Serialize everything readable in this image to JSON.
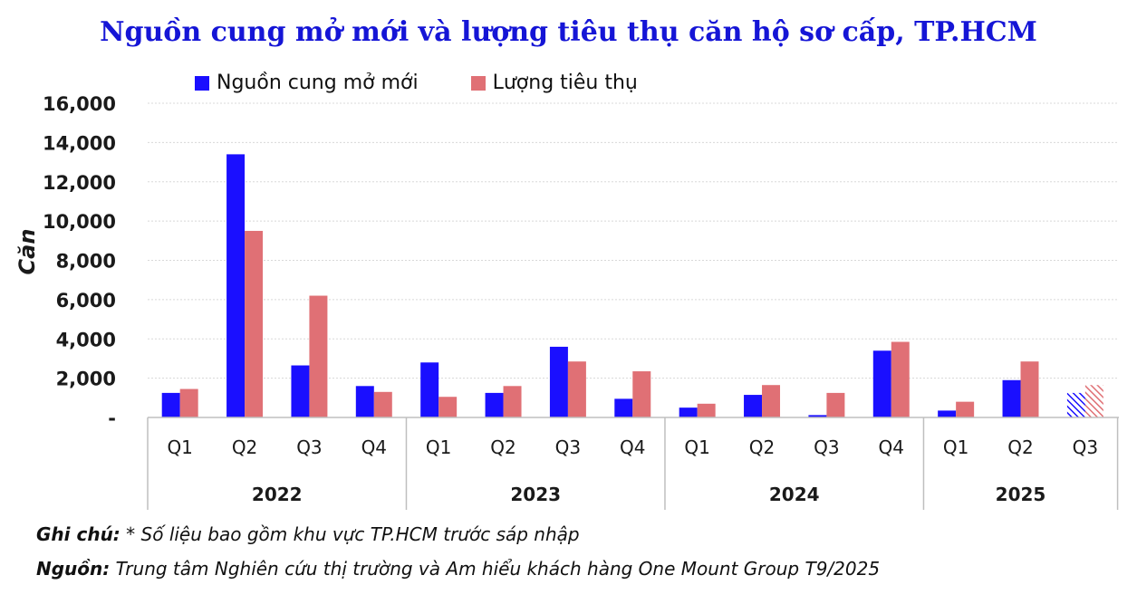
{
  "chart_data": {
    "type": "bar",
    "title": "Nguồn cung mở mới và lượng tiêu thụ căn hộ sơ cấp, TP.HCM",
    "ylabel": "Căn",
    "ylim": [
      0,
      16000
    ],
    "y_ticks": [
      "-",
      "2,000",
      "4,000",
      "6,000",
      "8,000",
      "10,000",
      "12,000",
      "14,000",
      "16,000"
    ],
    "grid": true,
    "legend_position": "top",
    "groups": [
      {
        "label": "2022",
        "categories": [
          "Q1",
          "Q2",
          "Q3",
          "Q4"
        ]
      },
      {
        "label": "2023",
        "categories": [
          "Q1",
          "Q2",
          "Q3",
          "Q4"
        ]
      },
      {
        "label": "2024",
        "categories": [
          "Q1",
          "Q2",
          "Q3",
          "Q4"
        ]
      },
      {
        "label": "2025",
        "categories": [
          "Q1",
          "Q2",
          "Q3"
        ]
      }
    ],
    "series": [
      {
        "name": "Nguồn cung mở mới",
        "color": "#1a0fff",
        "values": [
          1250,
          13400,
          2650,
          1600,
          2800,
          1250,
          3600,
          950,
          500,
          1150,
          120,
          3400,
          350,
          1900,
          1250
        ]
      },
      {
        "name": "Lượng tiêu thụ",
        "color": "#e07075",
        "values": [
          1450,
          9500,
          6200,
          1300,
          1050,
          1600,
          2850,
          2350,
          700,
          1650,
          1250,
          3850,
          800,
          2850,
          1650
        ]
      }
    ],
    "hatched_last_category": true
  },
  "notes": {
    "note_label": "Ghi chú:",
    "note_text": " * Số liệu bao gồm khu vực TP.HCM trước sáp nhập",
    "source_label": "Nguồn:",
    "source_text": " Trung tâm Nghiên cứu thị trường và Am hiểu khách hàng One Mount Group T9/2025"
  }
}
